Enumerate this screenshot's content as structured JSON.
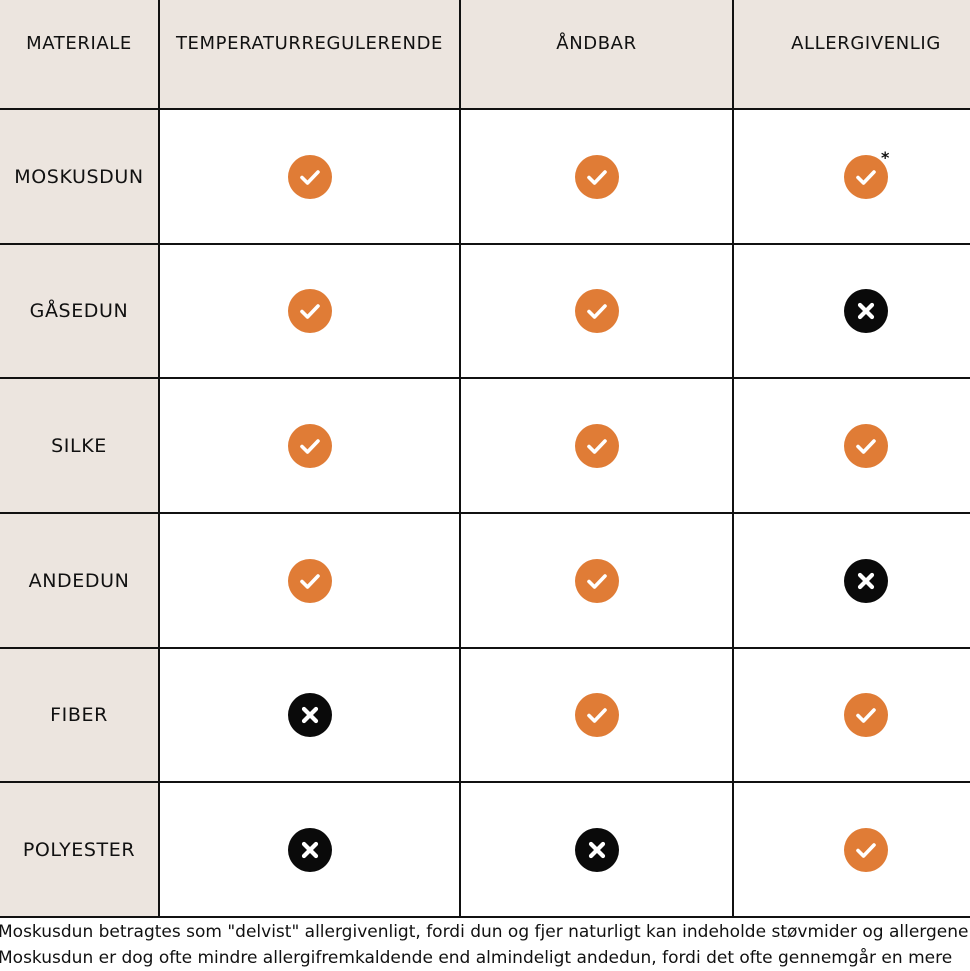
{
  "table": {
    "headers": [
      "MATERIALE",
      "TEMPERATURREGULERENDE",
      "ÅNDBAR",
      "ALLERGIVENLIG"
    ],
    "rows": [
      {
        "material": "MOSKUSDUN",
        "values": [
          "yes",
          "yes",
          "yes"
        ],
        "asterisk": "*"
      },
      {
        "material": "GÅSEDUN",
        "values": [
          "yes",
          "yes",
          "no"
        ]
      },
      {
        "material": "SILKE",
        "values": [
          "yes",
          "yes",
          "yes"
        ]
      },
      {
        "material": "ANDEDUN",
        "values": [
          "yes",
          "yes",
          "no"
        ]
      },
      {
        "material": "FIBER",
        "values": [
          "no",
          "yes",
          "yes"
        ]
      },
      {
        "material": "POLYESTER",
        "values": [
          "no",
          "no",
          "yes"
        ]
      }
    ]
  },
  "icons": {
    "yes": "check-circle-icon",
    "no": "x-circle-icon"
  },
  "colors": {
    "header_bg": "#ece5df",
    "check": "#e07c36",
    "cross": "#0a0a0a"
  },
  "footnote": {
    "line1": "Moskusdun betragtes som \"delvist\" allergivenligt, fordi dun og fjer naturligt kan indeholde støvmider og allergene",
    "line2": "Moskusdun er dog ofte mindre allergifremkaldende end almindeligt andedun, fordi det ofte gennemgår en mere"
  }
}
